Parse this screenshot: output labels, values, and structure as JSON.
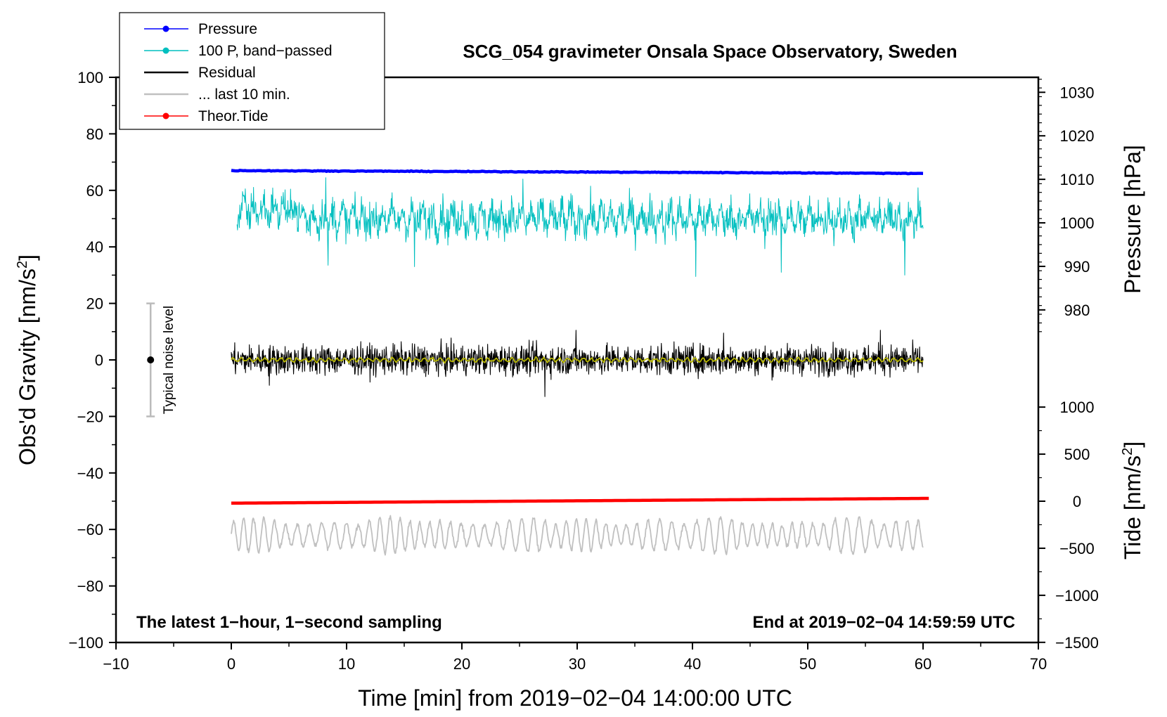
{
  "chart_data": {
    "type": "line",
    "title": "SCG_054 gravimeter Onsala Space Observatory, Sweden",
    "xlabel": "Time [min] from 2019−02−04 14:00:00 UTC",
    "ylabel_left": "Obs'd Gravity [nm/s",
    "ylabel_left_sup": "2",
    "ylabel_left_close": "]",
    "ylabel_right_pressure": "Pressure [hPa]",
    "ylabel_right_tide": "Tide [nm/s",
    "ylabel_right_tide_sup": "2",
    "ylabel_right_tide_close": "]",
    "xlim": [
      -10,
      70
    ],
    "ylim": [
      -100,
      100
    ],
    "x_ticks": [
      -10,
      0,
      10,
      20,
      30,
      40,
      50,
      60,
      70
    ],
    "x_tick_labels": [
      "−10",
      "0",
      "10",
      "20",
      "30",
      "40",
      "50",
      "60",
      "70"
    ],
    "y_ticks": [
      -100,
      -80,
      -60,
      -40,
      -20,
      0,
      20,
      40,
      60,
      80,
      100
    ],
    "y_tick_labels": [
      "−100",
      "−80",
      "−60",
      "−40",
      "−20",
      "0",
      "20",
      "40",
      "60",
      "80",
      "100"
    ],
    "pressure_axis": {
      "ticks": [
        980,
        990,
        1000,
        1010,
        1020,
        1030
      ],
      "tick_labels": [
        "980",
        "990",
        "1000",
        "1010",
        "1020",
        "1030"
      ],
      "gravity_at_980": 17.7,
      "gravity_per_hPa": 1.54
    },
    "tide_axis": {
      "ticks": [
        -1500,
        -1000,
        -500,
        0,
        500,
        1000
      ],
      "tick_labels": [
        "−1500",
        "−1000",
        "−500",
        "0",
        "500",
        "1000"
      ],
      "gravity_at_0": -50.0,
      "gravity_per_unit": 0.0333
    },
    "series": [
      {
        "name": "Pressure",
        "color": "#0000ff",
        "style": "thick-line",
        "x_range": [
          0,
          60
        ],
        "level_start": 67.0,
        "level_end": 66.0,
        "amplitude": 0.3
      },
      {
        "name": "100 P, band−passed",
        "color": "#00bfbf",
        "style": "noisy",
        "x_range": [
          0.5,
          60
        ],
        "mean": 50,
        "amplitude": 8,
        "spikes": [
          [
            8.4,
            33.5
          ],
          [
            15.9,
            33.0
          ],
          [
            40.3,
            29.5
          ],
          [
            47.7,
            31.0
          ],
          [
            58.4,
            30.0
          ],
          [
            8.2,
            64.5
          ],
          [
            25.3,
            64.0
          ]
        ]
      },
      {
        "name": "Residual",
        "color": "#000000",
        "style": "noisy",
        "x_range": [
          0,
          60
        ],
        "mean": 0,
        "amplitude": 5,
        "spikes": [
          [
            27.2,
            -13
          ],
          [
            29.9,
            10.5
          ],
          [
            56.3,
            10.5
          ],
          [
            42.7,
            9.5
          ],
          [
            3.3,
            -9
          ]
        ]
      },
      {
        "name": "... last 10 min.",
        "color": "#c0c0c0",
        "style": "wave",
        "x_range": [
          0,
          60
        ],
        "mean": -62,
        "amplitude": 6.5
      },
      {
        "name": "Theor.Tide",
        "color": "#ff0000",
        "style": "thick-line",
        "x_range": [
          0,
          60.5
        ],
        "level_start": -50.7,
        "level_end": -49.0
      },
      {
        "name": "Residual smoothed",
        "color": "#b5b500",
        "style": "smooth",
        "x_range": [
          0,
          60
        ],
        "mean": 0,
        "amplitude": 1
      }
    ],
    "legend": [
      {
        "label": "Pressure",
        "color": "#0000ff",
        "marker": true
      },
      {
        "label": "100 P, band−passed",
        "color": "#00bfbf",
        "marker": true
      },
      {
        "label": "Residual",
        "color": "#000000",
        "marker": false
      },
      {
        "label": "... last 10 min.",
        "color": "#c0c0c0",
        "marker": false
      },
      {
        "label": "Theor.Tide",
        "color": "#ff0000",
        "marker": true
      }
    ],
    "noise_indicator": {
      "label": "Typical noise level",
      "x": -7,
      "y_center": 0,
      "y_low": -20,
      "y_high": 20
    },
    "annotations": {
      "bottom_left": "The latest 1−hour, 1−second sampling",
      "bottom_right": "End at 2019−02−04 14:59:59 UTC"
    }
  }
}
